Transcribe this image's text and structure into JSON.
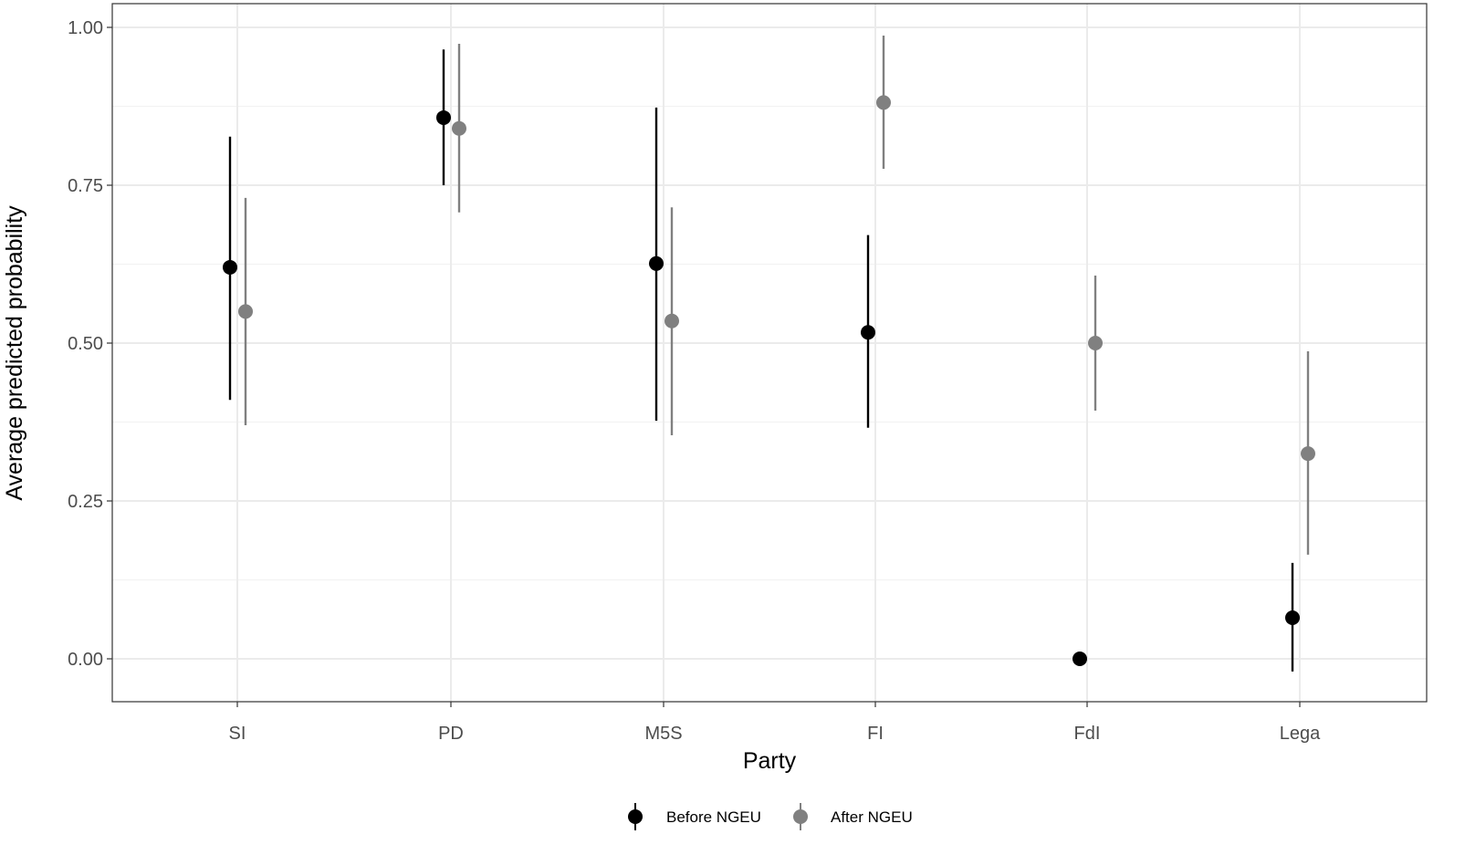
{
  "chart_data": {
    "type": "scatter",
    "subtype": "point-range (dodged)",
    "title": "",
    "xlabel": "Party",
    "ylabel": "Average predicted probability",
    "categories": [
      "SI",
      "PD",
      "M5S",
      "FI",
      "FdI",
      "Lega"
    ],
    "ylim": [
      -0.067,
      1.04
    ],
    "yticks": [
      "0.00",
      "0.25",
      "0.50",
      "0.75",
      "1.00"
    ],
    "ytick_values": [
      0,
      0.25,
      0.5,
      0.75,
      1.0
    ],
    "grid": true,
    "legend_position": "bottom",
    "series": [
      {
        "name": "Before NGEU",
        "color": "#000000",
        "values": [
          0.62,
          0.857,
          0.626,
          0.517,
          0.0,
          0.065
        ],
        "lower": [
          0.41,
          0.75,
          0.377,
          0.366,
          0.0,
          -0.02
        ],
        "upper": [
          0.827,
          0.965,
          0.873,
          0.671,
          0.0,
          0.152
        ]
      },
      {
        "name": "After NGEU",
        "color": "#808080",
        "values": [
          0.55,
          0.84,
          0.535,
          0.881,
          0.5,
          0.325
        ],
        "lower": [
          0.37,
          0.707,
          0.354,
          0.776,
          0.393,
          0.165
        ],
        "upper": [
          0.73,
          0.974,
          0.715,
          0.987,
          0.607,
          0.487
        ]
      }
    ]
  },
  "legend": {
    "items": [
      {
        "label": "Before NGEU",
        "color": "#000000"
      },
      {
        "label": "After NGEU",
        "color": "#808080"
      }
    ]
  }
}
